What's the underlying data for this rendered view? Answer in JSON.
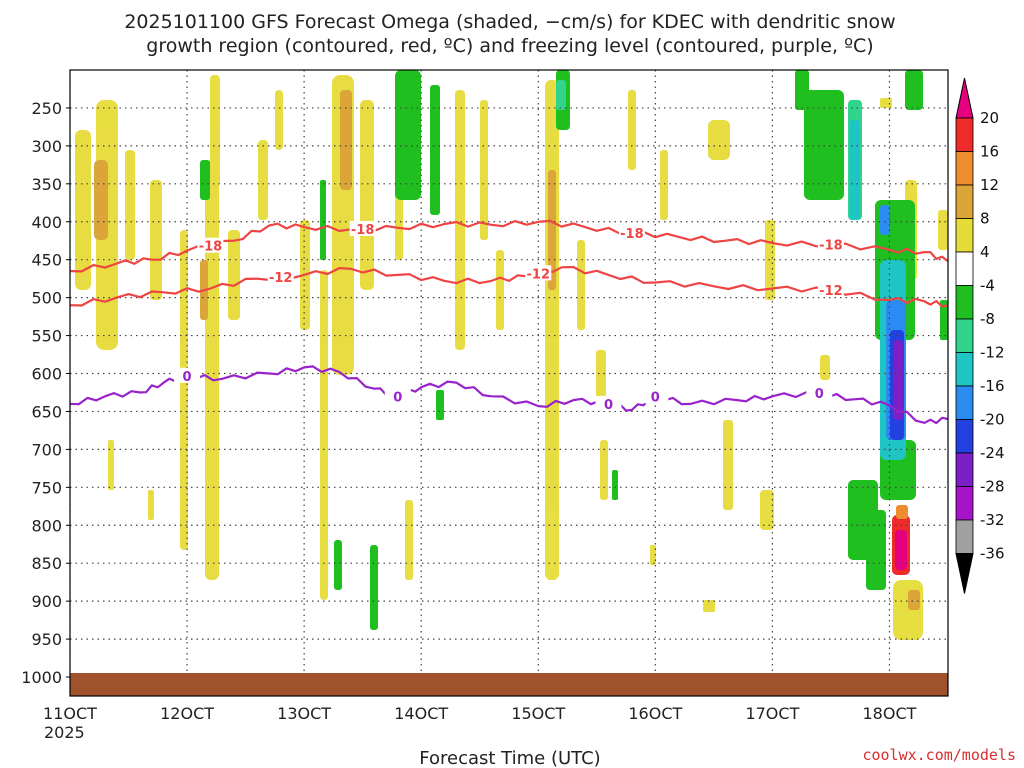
{
  "chart_data": {
    "type": "heatmap",
    "title_line1": "2025101100 GFS Forecast Omega (shaded, −cm/s) for KDEC with dendritic snow",
    "title_line2": "growth region (contoured, red, ºC) and freezing level (contoured, purple, ºC)",
    "xlabel": "Forecast Time (UTC)",
    "x_year_label": "2025",
    "x_ticks": [
      "11OCT",
      "12OCT",
      "13OCT",
      "14OCT",
      "15OCT",
      "16OCT",
      "17OCT",
      "18OCT"
    ],
    "x_range_days": [
      11,
      18.5
    ],
    "y_ticks": [
      250,
      300,
      350,
      400,
      450,
      500,
      550,
      600,
      650,
      700,
      750,
      800,
      850,
      900,
      950,
      1000
    ],
    "y_range_hpa": [
      200,
      1025
    ],
    "colorbar_levels": [
      "20",
      "16",
      "12",
      "8",
      "4",
      "-4",
      "-8",
      "-12",
      "-16",
      "-20",
      "-24",
      "-28",
      "-32",
      "-36"
    ],
    "colorbar_colors": [
      "#e5007e",
      "#ee2a2a",
      "#ef8c2e",
      "#dba53a",
      "#e6dc38",
      "#ffffff",
      "#1ebf1e",
      "#30d48c",
      "#1fc4c4",
      "#2a8cf0",
      "#2340e0",
      "#7b1fc7",
      "#a514c8",
      "#a0a0a0",
      "#000000"
    ],
    "contours": [
      {
        "label": "-18",
        "color": "#ee4444",
        "series": [
          [
            11.0,
            465
          ],
          [
            11.4,
            455
          ],
          [
            11.7,
            450
          ],
          [
            12.0,
            438
          ],
          [
            12.4,
            425
          ],
          [
            12.7,
            405
          ],
          [
            13.0,
            407
          ],
          [
            13.4,
            410
          ],
          [
            13.8,
            408
          ],
          [
            14.2,
            403
          ],
          [
            14.6,
            404
          ],
          [
            15.0,
            400
          ],
          [
            15.4,
            407
          ],
          [
            15.8,
            415
          ],
          [
            16.2,
            420
          ],
          [
            16.6,
            425
          ],
          [
            17.0,
            428
          ],
          [
            17.5,
            430
          ],
          [
            18.0,
            437
          ],
          [
            18.3,
            440
          ],
          [
            18.5,
            452
          ]
        ]
      },
      {
        "label": "-12",
        "color": "#ee4444",
        "series": [
          [
            11.0,
            510
          ],
          [
            11.4,
            500
          ],
          [
            11.8,
            493
          ],
          [
            12.2,
            488
          ],
          [
            12.6,
            475
          ],
          [
            13.0,
            470
          ],
          [
            13.4,
            462
          ],
          [
            13.8,
            470
          ],
          [
            14.2,
            478
          ],
          [
            14.6,
            478
          ],
          [
            14.9,
            472
          ],
          [
            15.2,
            460
          ],
          [
            15.6,
            470
          ],
          [
            16.0,
            480
          ],
          [
            16.5,
            485
          ],
          [
            17.0,
            488
          ],
          [
            17.5,
            490
          ],
          [
            18.0,
            503
          ],
          [
            18.3,
            505
          ],
          [
            18.5,
            510
          ]
        ]
      },
      {
        "label": "0",
        "color": "#9922cc",
        "series": [
          [
            11.0,
            640
          ],
          [
            11.3,
            630
          ],
          [
            11.6,
            625
          ],
          [
            11.8,
            612
          ],
          [
            12.0,
            603
          ],
          [
            12.3,
            607
          ],
          [
            12.7,
            600
          ],
          [
            13.0,
            592
          ],
          [
            13.3,
            598
          ],
          [
            13.6,
            620
          ],
          [
            13.8,
            630
          ],
          [
            14.0,
            618
          ],
          [
            14.3,
            612
          ],
          [
            14.6,
            630
          ],
          [
            15.0,
            643
          ],
          [
            15.3,
            635
          ],
          [
            15.6,
            640
          ],
          [
            15.8,
            648
          ],
          [
            16.0,
            630
          ],
          [
            16.3,
            640
          ],
          [
            16.7,
            635
          ],
          [
            17.0,
            630
          ],
          [
            17.4,
            626
          ],
          [
            17.7,
            634
          ],
          [
            18.0,
            642
          ],
          [
            18.3,
            665
          ],
          [
            18.5,
            660
          ]
        ]
      }
    ]
  },
  "credit": "coolwx.com/models"
}
